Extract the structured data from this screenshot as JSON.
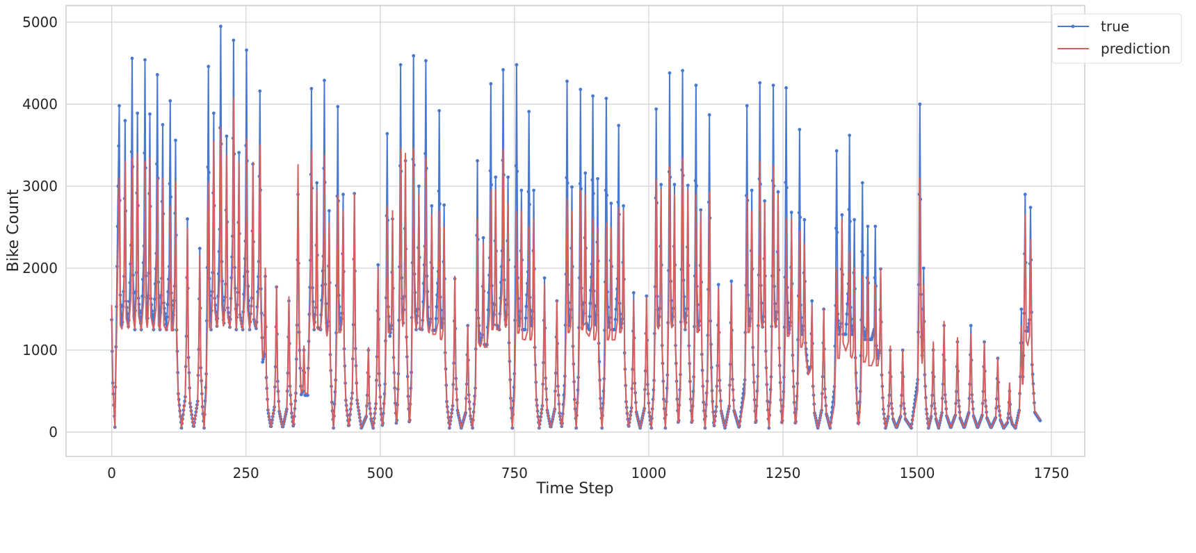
{
  "chart_data": {
    "type": "line",
    "title": "",
    "xlabel": "Time Step",
    "ylabel": "Bike Count",
    "xlim": [
      -85,
      1812
    ],
    "ylim": [
      -297,
      5203
    ],
    "xticks": [
      0,
      250,
      500,
      750,
      1000,
      1250,
      1500,
      1750
    ],
    "yticks": [
      0,
      1000,
      2000,
      3000,
      4000,
      5000
    ],
    "grid": true,
    "legend_position": "top-right",
    "x_range": [
      0,
      1729
    ],
    "series": [
      {
        "name": "true",
        "color": "#4878d0",
        "marker": "dot",
        "start_value": 1370,
        "end_value": 140,
        "peaks": [
          [
            14,
            3980
          ],
          [
            25,
            3800
          ],
          [
            38,
            4560
          ],
          [
            48,
            3890
          ],
          [
            62,
            4540
          ],
          [
            71,
            3880
          ],
          [
            85,
            4360
          ],
          [
            95,
            3750
          ],
          [
            109,
            4040
          ],
          [
            119,
            3560
          ],
          [
            141,
            2600
          ],
          [
            164,
            2240
          ],
          [
            180,
            4460
          ],
          [
            190,
            3890
          ],
          [
            203,
            4950
          ],
          [
            214,
            3610
          ],
          [
            227,
            4780
          ],
          [
            237,
            3410
          ],
          [
            251,
            4660
          ],
          [
            263,
            3270
          ],
          [
            276,
            4160
          ],
          [
            286,
            1900
          ],
          [
            307,
            1770
          ],
          [
            330,
            1600
          ],
          [
            347,
            2900
          ],
          [
            358,
            1000
          ],
          [
            372,
            4190
          ],
          [
            382,
            3040
          ],
          [
            396,
            4290
          ],
          [
            405,
            2700
          ],
          [
            421,
            3970
          ],
          [
            431,
            2900
          ],
          [
            452,
            2910
          ],
          [
            478,
            1000
          ],
          [
            496,
            2040
          ],
          [
            513,
            3640
          ],
          [
            523,
            2600
          ],
          [
            538,
            4480
          ],
          [
            547,
            3310
          ],
          [
            562,
            4590
          ],
          [
            572,
            3000
          ],
          [
            585,
            4530
          ],
          [
            596,
            2760
          ],
          [
            610,
            3920
          ],
          [
            619,
            2770
          ],
          [
            639,
            1870
          ],
          [
            663,
            1300
          ],
          [
            681,
            3310
          ],
          [
            692,
            2370
          ],
          [
            706,
            4250
          ],
          [
            715,
            3110
          ],
          [
            729,
            4420
          ],
          [
            738,
            3110
          ],
          [
            754,
            4480
          ],
          [
            763,
            2950
          ],
          [
            777,
            3910
          ],
          [
            786,
            2950
          ],
          [
            806,
            1880
          ],
          [
            829,
            1600
          ],
          [
            848,
            4280
          ],
          [
            857,
            2990
          ],
          [
            873,
            4180
          ],
          [
            882,
            3160
          ],
          [
            896,
            4100
          ],
          [
            905,
            3090
          ],
          [
            921,
            4070
          ],
          [
            930,
            2790
          ],
          [
            944,
            3740
          ],
          [
            953,
            2760
          ],
          [
            972,
            1700
          ],
          [
            996,
            1660
          ],
          [
            1014,
            3940
          ],
          [
            1023,
            3020
          ],
          [
            1039,
            4380
          ],
          [
            1048,
            3020
          ],
          [
            1063,
            4410
          ],
          [
            1073,
            3010
          ],
          [
            1088,
            4230
          ],
          [
            1097,
            2710
          ],
          [
            1113,
            3870
          ],
          [
            1130,
            1800
          ],
          [
            1154,
            1840
          ],
          [
            1183,
            3980
          ],
          [
            1192,
            2950
          ],
          [
            1207,
            4260
          ],
          [
            1216,
            2820
          ],
          [
            1232,
            4230
          ],
          [
            1241,
            2930
          ],
          [
            1256,
            4200
          ],
          [
            1266,
            2680
          ],
          [
            1281,
            3690
          ],
          [
            1290,
            2590
          ],
          [
            1304,
            1600
          ],
          [
            1326,
            1500
          ],
          [
            1350,
            3430
          ],
          [
            1360,
            2650
          ],
          [
            1374,
            3620
          ],
          [
            1383,
            2590
          ],
          [
            1398,
            3040
          ],
          [
            1408,
            2510
          ],
          [
            1422,
            2510
          ],
          [
            1432,
            1990
          ],
          [
            1450,
            1000
          ],
          [
            1473,
            1000
          ],
          [
            1505,
            4000
          ],
          [
            1512,
            2000
          ],
          [
            1530,
            1000
          ],
          [
            1550,
            1300
          ],
          [
            1575,
            1100
          ],
          [
            1600,
            1300
          ],
          [
            1625,
            1100
          ],
          [
            1650,
            900
          ],
          [
            1672,
            500
          ],
          [
            1694,
            1500
          ],
          [
            1701,
            2900
          ],
          [
            1711,
            2740
          ]
        ]
      },
      {
        "name": "prediction",
        "color": "#d65f5f",
        "marker": "none",
        "start_value": 1550,
        "end_value": 150,
        "peaks": [
          [
            14,
            3100
          ],
          [
            25,
            3300
          ],
          [
            38,
            3350
          ],
          [
            48,
            3400
          ],
          [
            62,
            3300
          ],
          [
            71,
            3350
          ],
          [
            85,
            3100
          ],
          [
            95,
            3100
          ],
          [
            109,
            2750
          ],
          [
            119,
            3050
          ],
          [
            141,
            2480
          ],
          [
            164,
            2150
          ],
          [
            180,
            3050
          ],
          [
            190,
            3550
          ],
          [
            203,
            3720
          ],
          [
            214,
            3380
          ],
          [
            227,
            4080
          ],
          [
            237,
            3290
          ],
          [
            251,
            3580
          ],
          [
            263,
            3290
          ],
          [
            276,
            3500
          ],
          [
            286,
            2000
          ],
          [
            307,
            1780
          ],
          [
            330,
            1650
          ],
          [
            347,
            3260
          ],
          [
            358,
            1050
          ],
          [
            372,
            3440
          ],
          [
            382,
            2950
          ],
          [
            396,
            3380
          ],
          [
            405,
            2550
          ],
          [
            421,
            2880
          ],
          [
            431,
            2700
          ],
          [
            452,
            2910
          ],
          [
            478,
            1030
          ],
          [
            496,
            2000
          ],
          [
            513,
            2750
          ],
          [
            523,
            2700
          ],
          [
            538,
            3460
          ],
          [
            547,
            3400
          ],
          [
            562,
            3460
          ],
          [
            572,
            2900
          ],
          [
            585,
            3350
          ],
          [
            596,
            2650
          ],
          [
            610,
            2700
          ],
          [
            619,
            2500
          ],
          [
            639,
            1900
          ],
          [
            663,
            1300
          ],
          [
            681,
            2600
          ],
          [
            692,
            2300
          ],
          [
            706,
            2950
          ],
          [
            715,
            2950
          ],
          [
            729,
            3450
          ],
          [
            738,
            2800
          ],
          [
            754,
            2680
          ],
          [
            763,
            2700
          ],
          [
            777,
            2500
          ],
          [
            786,
            2600
          ],
          [
            806,
            1800
          ],
          [
            829,
            1600
          ],
          [
            848,
            2850
          ],
          [
            857,
            2700
          ],
          [
            873,
            2950
          ],
          [
            882,
            2900
          ],
          [
            896,
            2600
          ],
          [
            905,
            2500
          ],
          [
            921,
            2550
          ],
          [
            930,
            2500
          ],
          [
            944,
            2740
          ],
          [
            953,
            2700
          ],
          [
            972,
            1600
          ],
          [
            996,
            1650
          ],
          [
            1014,
            3080
          ],
          [
            1023,
            2950
          ],
          [
            1039,
            3240
          ],
          [
            1048,
            2900
          ],
          [
            1063,
            3350
          ],
          [
            1073,
            2950
          ],
          [
            1088,
            2900
          ],
          [
            1097,
            2700
          ],
          [
            1113,
            2930
          ],
          [
            1130,
            1750
          ],
          [
            1154,
            1800
          ],
          [
            1183,
            2880
          ],
          [
            1192,
            2700
          ],
          [
            1207,
            3300
          ],
          [
            1216,
            2800
          ],
          [
            1232,
            3250
          ],
          [
            1241,
            2900
          ],
          [
            1256,
            2600
          ],
          [
            1266,
            2600
          ],
          [
            1281,
            2450
          ],
          [
            1290,
            2300
          ],
          [
            1304,
            1550
          ],
          [
            1326,
            1500
          ],
          [
            1350,
            2000
          ],
          [
            1360,
            2600
          ],
          [
            1374,
            2200
          ],
          [
            1383,
            2000
          ],
          [
            1398,
            1900
          ],
          [
            1408,
            1900
          ],
          [
            1422,
            1800
          ],
          [
            1432,
            2000
          ],
          [
            1450,
            1050
          ],
          [
            1473,
            1000
          ],
          [
            1505,
            3100
          ],
          [
            1512,
            1800
          ],
          [
            1530,
            1100
          ],
          [
            1550,
            1350
          ],
          [
            1575,
            1150
          ],
          [
            1600,
            1200
          ],
          [
            1625,
            1100
          ],
          [
            1650,
            900
          ],
          [
            1672,
            600
          ],
          [
            1694,
            1300
          ],
          [
            1701,
            2650
          ],
          [
            1711,
            2350
          ]
        ]
      }
    ]
  }
}
